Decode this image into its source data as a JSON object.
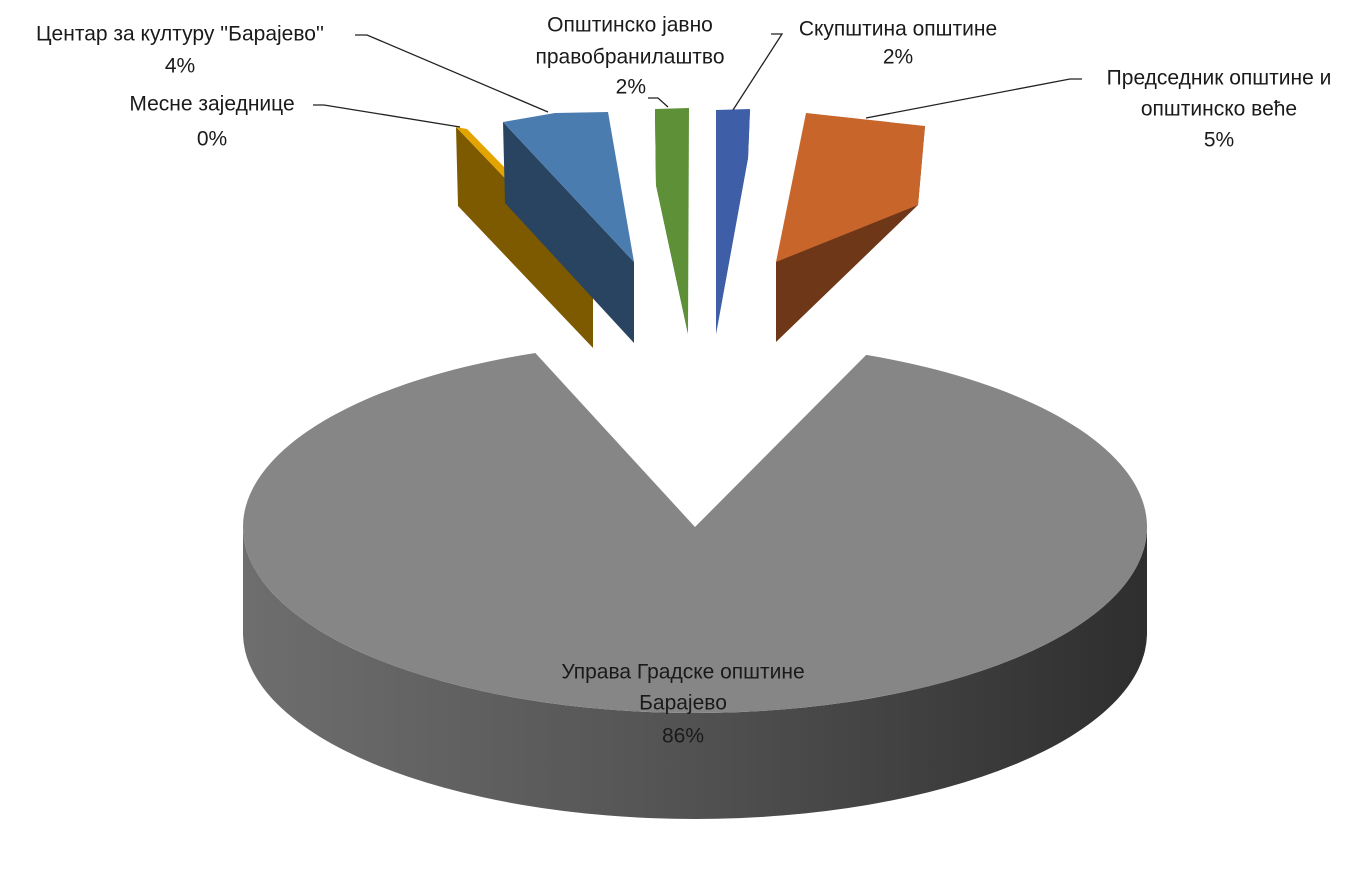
{
  "chart_data": {
    "type": "pie",
    "style": "3d-exploded",
    "title": "",
    "units": "%",
    "slices": [
      {
        "name": "Скупштина општине",
        "value": 2,
        "label_lines": [
          "Скупштина општине"
        ],
        "pct_label": "2%",
        "color": "#3E5FA8"
      },
      {
        "name": "Председник општине и општинско веће",
        "value": 5,
        "label_lines": [
          "Председник општине и",
          "општинско веће"
        ],
        "pct_label": "5%",
        "color": "#C8652B"
      },
      {
        "name": "Управа Градске општине Барајево",
        "value": 86,
        "label_lines": [
          "Управа Градске општине",
          "Барајево"
        ],
        "pct_label": "86%",
        "color": "#868686"
      },
      {
        "name": "Месне заједнице",
        "value": 0.5,
        "label_lines": [
          "Месне заједнице"
        ],
        "pct_label": "0%",
        "color": "#E3A400"
      },
      {
        "name": "Центар за културу ''Барајево''",
        "value": 4,
        "label_lines": [
          "Центар за културу ''Барајево''"
        ],
        "pct_label": "4%",
        "color": "#4A7CB0"
      },
      {
        "name": "Општинско јавно правобранилаштво",
        "value": 2,
        "label_lines": [
          "Општинско јавно",
          "правобранилаштво"
        ],
        "pct_label": "2%",
        "color": "#5D9037"
      }
    ]
  }
}
